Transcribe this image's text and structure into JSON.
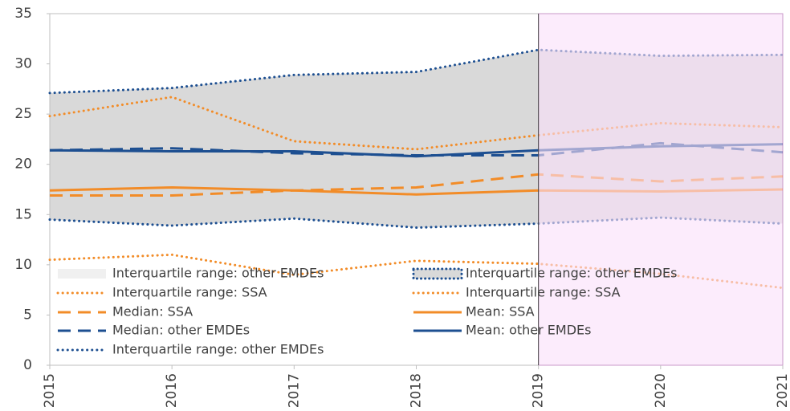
{
  "chart_data": {
    "type": "line",
    "x": [
      2015,
      2016,
      2017,
      2018,
      2019,
      2020,
      2021
    ],
    "xlim": [
      2015,
      2021
    ],
    "xticks": [
      2015,
      2016,
      2017,
      2018,
      2019,
      2020,
      2021
    ],
    "ylim": [
      0,
      35
    ],
    "yticks": [
      0,
      5,
      10,
      15,
      20,
      25,
      30,
      35
    ],
    "band_color": "#d9d9d9",
    "forecast_start": 2019,
    "forecast_color": "#fbe0fb",
    "series": [
      {
        "color": "#1d4f91",
        "style": "dotted",
        "band": "upper",
        "values": [
          27.1,
          27.6,
          28.9,
          29.2,
          31.4,
          30.8,
          30.9
        ]
      },
      {
        "color": "#1d4f91",
        "style": "dotted",
        "band": "lower",
        "values": [
          14.5,
          13.9,
          14.6,
          13.7,
          14.1,
          14.7,
          14.1
        ]
      },
      {
        "color": "#f28c28",
        "style": "dotted",
        "values": [
          24.8,
          26.7,
          22.3,
          21.5,
          22.9,
          24.1,
          23.7
        ]
      },
      {
        "color": "#f28c28",
        "style": "dotted",
        "values": [
          10.5,
          11.0,
          9.0,
          10.4,
          10.1,
          9.1,
          7.7
        ]
      },
      {
        "color": "#f28c28",
        "style": "dashed",
        "values": [
          16.9,
          16.9,
          17.4,
          17.7,
          19.0,
          18.3,
          18.8
        ]
      },
      {
        "color": "#f28c28",
        "style": "solid",
        "values": [
          17.4,
          17.7,
          17.4,
          17.0,
          17.4,
          17.3,
          17.5
        ]
      },
      {
        "color": "#1d4f91",
        "style": "dashed",
        "values": [
          21.4,
          21.6,
          21.1,
          20.9,
          20.9,
          22.1,
          21.2
        ]
      },
      {
        "color": "#1d4f91",
        "style": "solid",
        "values": [
          21.4,
          21.3,
          21.3,
          20.8,
          21.4,
          21.8,
          22.0
        ]
      }
    ],
    "legend": [
      {
        "label": "Interquartile range: other EMDEs",
        "style": "area",
        "color": "#d9d9d9"
      },
      {
        "label": "Interquartile range: SSA",
        "style": "dotted",
        "color": "#f28c28"
      },
      {
        "label": "Median: SSA",
        "style": "dashed",
        "color": "#f28c28"
      },
      {
        "label": "Median: other EMDEs",
        "style": "dashed",
        "color": "#1d4f91"
      },
      {
        "label": "Interquartile range: other EMDEs",
        "style": "dotted",
        "color": "#1d4f91"
      },
      {
        "label": "Interquartile range: other EMDEs",
        "style": "area-dotted",
        "color": "#1d4f91"
      },
      {
        "label": "Interquartile range: SSA",
        "style": "dotted",
        "color": "#f28c28"
      },
      {
        "label": "Mean: SSA",
        "style": "solid",
        "color": "#f28c28"
      },
      {
        "label": "Mean: other EMDEs",
        "style": "solid",
        "color": "#1d4f91"
      }
    ]
  }
}
